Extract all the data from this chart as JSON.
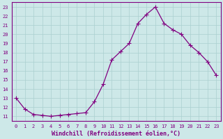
{
  "x": [
    0,
    1,
    2,
    3,
    4,
    5,
    6,
    7,
    8,
    9,
    10,
    11,
    12,
    13,
    14,
    15,
    16,
    17,
    18,
    19,
    20,
    21,
    22,
    23
  ],
  "y": [
    13.0,
    11.8,
    11.2,
    11.1,
    11.0,
    11.1,
    11.2,
    11.3,
    11.4,
    12.6,
    14.5,
    17.2,
    18.1,
    19.0,
    21.2,
    22.2,
    23.0,
    21.2,
    20.5,
    20.0,
    18.8,
    18.0,
    17.0,
    15.5
  ],
  "line_color": "#800080",
  "marker": "+",
  "marker_size": 4,
  "marker_lw": 0.8,
  "line_width": 0.9,
  "bg_color": "#cde8e8",
  "grid_color": "#aacfcf",
  "xlabel": "Windchill (Refroidissement éolien,°C)",
  "xlim": [
    -0.5,
    23.5
  ],
  "ylim": [
    10.5,
    23.5
  ],
  "yticks": [
    11,
    12,
    13,
    14,
    15,
    16,
    17,
    18,
    19,
    20,
    21,
    22,
    23
  ],
  "xticks": [
    0,
    1,
    2,
    3,
    4,
    5,
    6,
    7,
    8,
    9,
    10,
    11,
    12,
    13,
    14,
    15,
    16,
    17,
    18,
    19,
    20,
    21,
    22,
    23
  ],
  "tick_color": "#800080",
  "tick_fontsize": 5.0,
  "xlabel_fontsize": 6.0,
  "spine_color": "#800080"
}
